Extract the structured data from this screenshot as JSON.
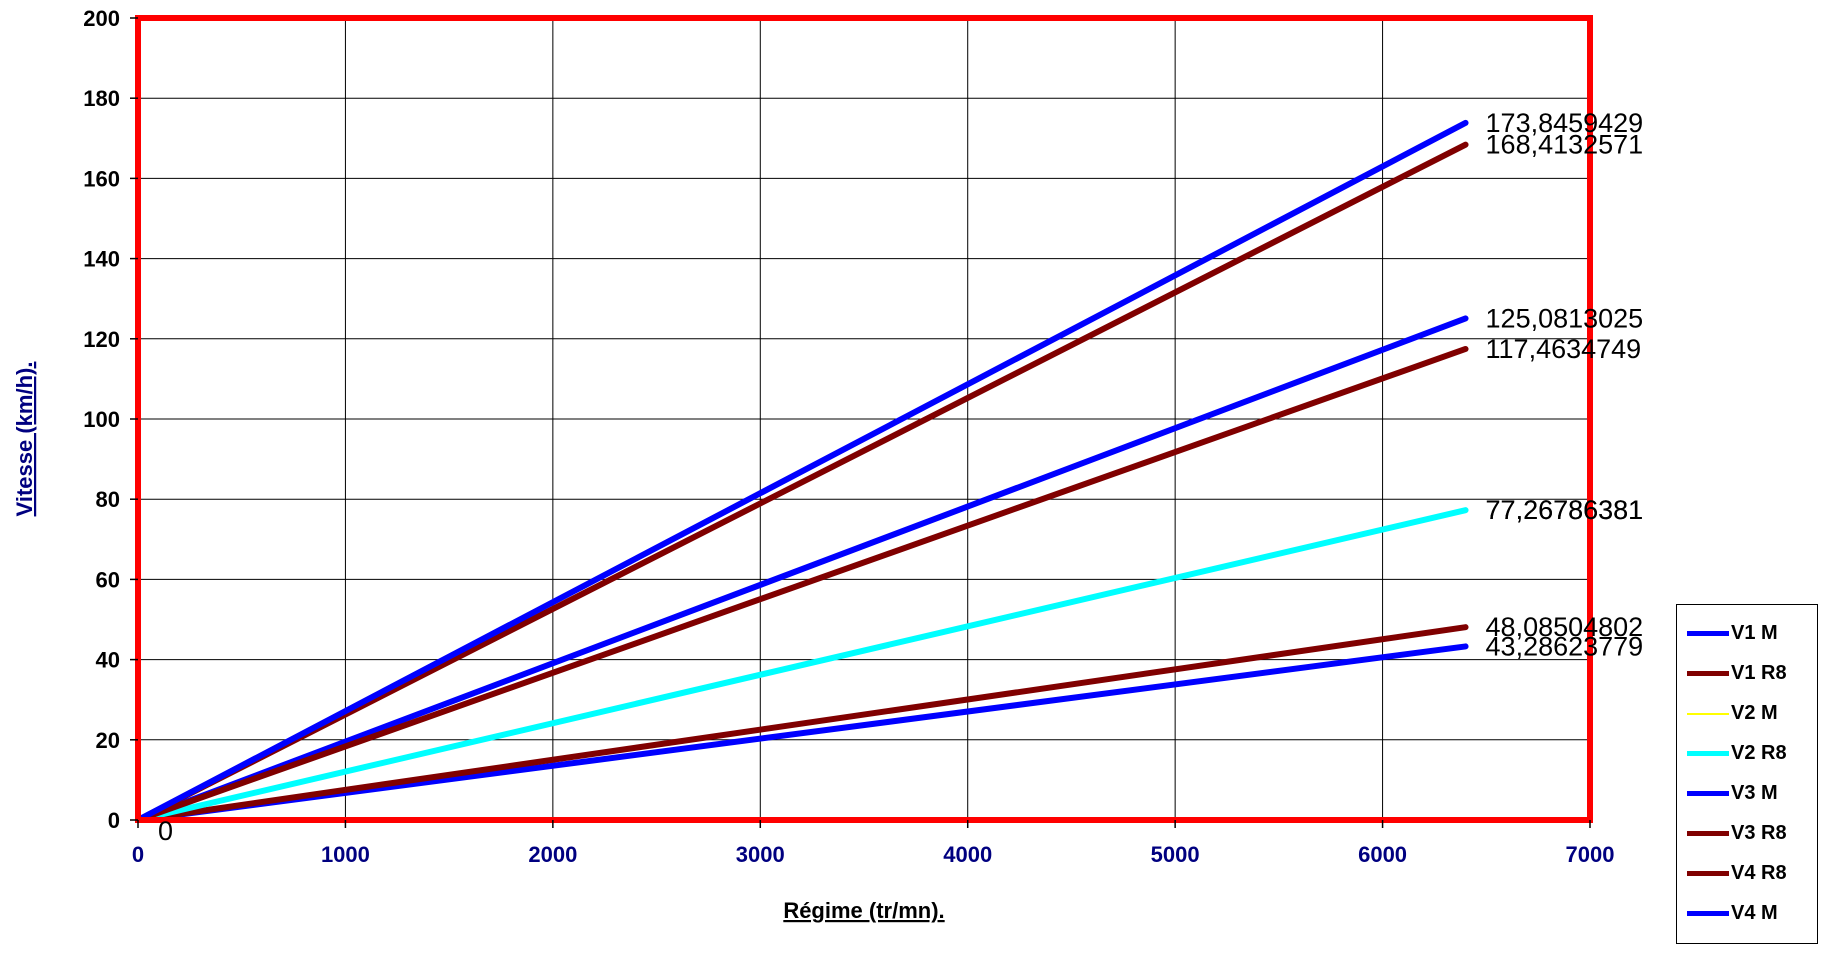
{
  "chart_data": {
    "type": "line",
    "xlabel": "Régime (tr/mn).",
    "ylabel": "Vitesse (km/h).",
    "xlim": [
      0,
      7000
    ],
    "ylim": [
      0,
      200
    ],
    "xticks": [
      "0",
      "1000",
      "2000",
      "3000",
      "4000",
      "5000",
      "6000",
      "7000"
    ],
    "yticks": [
      "0",
      "20",
      "40",
      "60",
      "80",
      "100",
      "120",
      "140",
      "160",
      "180",
      "200"
    ],
    "grid": true,
    "legend_position": "bottom-right",
    "plot_border_color": "#ff0000",
    "origin_label": "0",
    "series": [
      {
        "name": "V1 M",
        "color": "#0000ff",
        "width": 6,
        "x": [
          0,
          6400
        ],
        "y": [
          0,
          43.28623779
        ],
        "end_label": "43,28623779"
      },
      {
        "name": "V1 R8",
        "color": "#800000",
        "width": 6,
        "x": [
          0,
          6400
        ],
        "y": [
          0,
          48.08504802
        ],
        "end_label": "48,08504802"
      },
      {
        "name": "V2 M",
        "color": "#ffff00",
        "width": 2,
        "x": [
          0,
          6400
        ],
        "y": [
          0,
          77.26786381
        ],
        "end_label": "77,26786381"
      },
      {
        "name": "V2 R8",
        "color": "#00ffff",
        "width": 6,
        "x": [
          0,
          6400
        ],
        "y": [
          0,
          77.26786381
        ],
        "end_label": "77,26786381"
      },
      {
        "name": "V3 M",
        "color": "#0000ff",
        "width": 6,
        "x": [
          0,
          6400
        ],
        "y": [
          0,
          125.0813025
        ],
        "end_label": "125,0813025"
      },
      {
        "name": "V3 R8",
        "color": "#800000",
        "width": 6,
        "x": [
          0,
          6400
        ],
        "y": [
          0,
          117.4634749
        ],
        "end_label": "117,4634749"
      },
      {
        "name": "V4 R8",
        "color": "#800000",
        "width": 6,
        "x": [
          0,
          6400
        ],
        "y": [
          0,
          168.4132571
        ],
        "end_label": "168,4132571"
      },
      {
        "name": "V4 M",
        "color": "#0000ff",
        "width": 6,
        "x": [
          0,
          6400
        ],
        "y": [
          0,
          173.8459429
        ],
        "end_label": "173,8459429"
      }
    ]
  }
}
